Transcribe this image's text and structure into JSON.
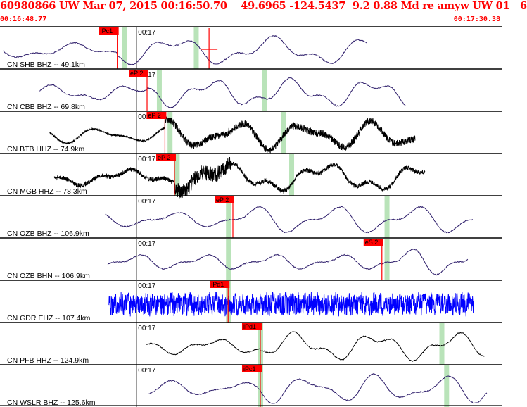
{
  "header": {
    "title": "60980866 UW Mar 07, 2015 00:16:50.70    49.6965 -124.5437  9.2 0.88 Md re amyw UW 01   6",
    "start_time": "00:16:48.77",
    "end_time": "00:17:30.38"
  },
  "colors": {
    "header_text": "#ff0000",
    "pick_box": "#ff0000",
    "pick_line": "#ff0000",
    "theoretical_marker": "#b9e3b9",
    "trace_default": "#2e1e6b",
    "trace_black": "#000000",
    "trace_blue": "#0000ff",
    "separator": "#000000"
  },
  "chart_data": {
    "type": "seismogram",
    "x_unit": "seconds after 00:16:48.77",
    "xlim": [
      0,
      41.61
    ],
    "minute_tick": "00:17",
    "minute_tick_seconds": 11.23,
    "channels": [
      {
        "label": "CN SHB BHZ -- 49.1km",
        "pick": "iPc1",
        "pick_seconds": 9.6,
        "green_marks_seconds": [
          10.2,
          16.2
        ],
        "color": "default",
        "style": "smooth",
        "extra_pick_seconds": 17.3
      },
      {
        "label": "CN CBB BHZ -- 69.8km",
        "pick": "eP 2",
        "pick_seconds": 12.1,
        "green_marks_seconds": [
          13.1,
          21.9
        ],
        "color": "default",
        "style": "smooth"
      },
      {
        "label": "CN BTB HHZ -- 74.9km",
        "pick": "eP 2",
        "pick_seconds": 13.6,
        "green_marks_seconds": [
          14.0,
          23.5
        ],
        "color": "black",
        "style": "mixed"
      },
      {
        "label": "CN MGB HHZ -- 78.3km",
        "pick": "eP 2",
        "pick_seconds": 14.4,
        "green_marks_seconds": [
          14.6,
          24.2
        ],
        "color": "black",
        "style": "noisy"
      },
      {
        "label": "CN OZB BHZ -- 106.9km",
        "pick": "eP 2",
        "pick_seconds": 19.3,
        "green_marks_seconds": [
          18.9,
          32.2
        ],
        "color": "default",
        "style": "smooth"
      },
      {
        "label": "CN OZB BHN -- 106.9km",
        "pick": "eS 2",
        "pick_seconds": 31.8,
        "green_marks_seconds": [
          18.9,
          32.2
        ],
        "color": "default",
        "style": "smooth"
      },
      {
        "label": "CN GDR EHZ -- 107.4km",
        "pick": "iPd1",
        "pick_seconds": 18.9,
        "green_marks_seconds": [
          18.9
        ],
        "color": "blue",
        "style": "noise"
      },
      {
        "label": "CN PFB HHZ -- 124.9km",
        "pick": "iPd1",
        "pick_seconds": 21.6,
        "green_marks_seconds": [
          21.6,
          36.8
        ],
        "color": "black",
        "style": "smooth"
      },
      {
        "label": "CN WSLR BHZ -- 125.6km",
        "pick": "iPc1",
        "pick_seconds": 21.6,
        "green_marks_seconds": [
          21.6,
          37.2
        ],
        "color": "default",
        "style": "smooth"
      }
    ]
  }
}
